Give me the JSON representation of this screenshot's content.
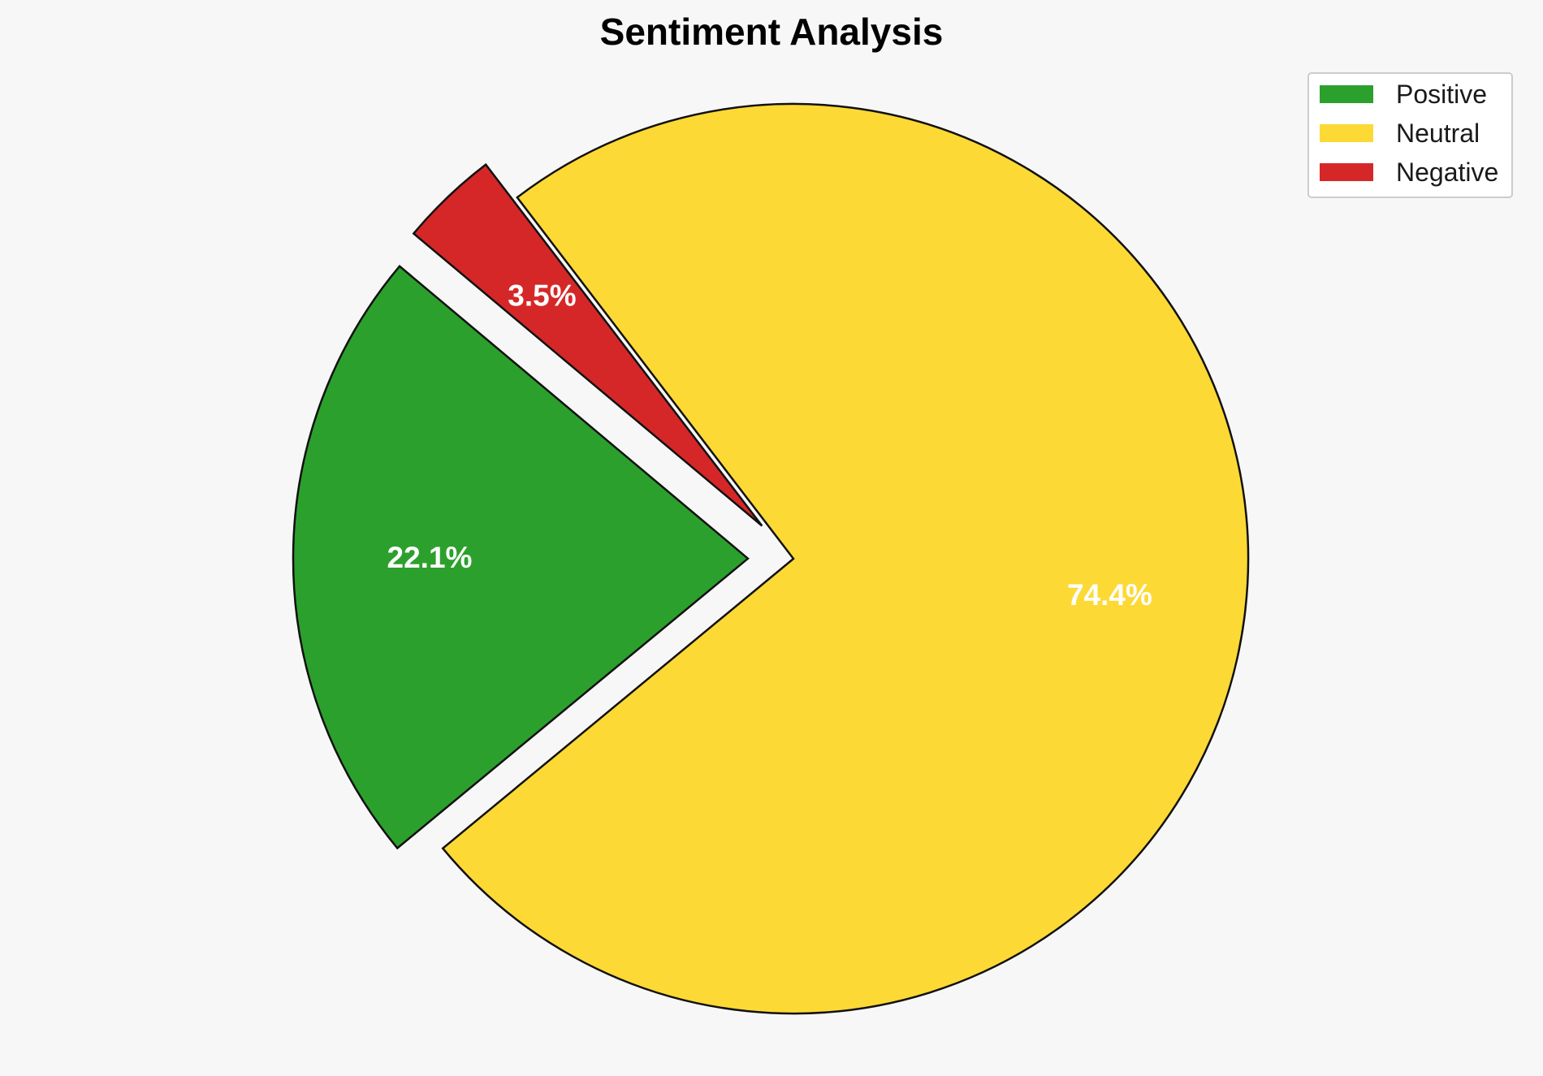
{
  "chart_data": {
    "type": "pie",
    "title": "Sentiment Analysis",
    "categories": [
      "Positive",
      "Neutral",
      "Negative"
    ],
    "values": [
      22.1,
      74.4,
      3.5
    ],
    "labels": [
      "22.1%",
      "74.4%",
      "3.5%"
    ],
    "colors": [
      "#2ca02c",
      "#fdd935",
      "#d62728"
    ],
    "exploded": [
      true,
      false,
      true
    ],
    "legend": {
      "placement": "top-right",
      "entries": [
        "Positive",
        "Neutral",
        "Negative"
      ]
    }
  }
}
